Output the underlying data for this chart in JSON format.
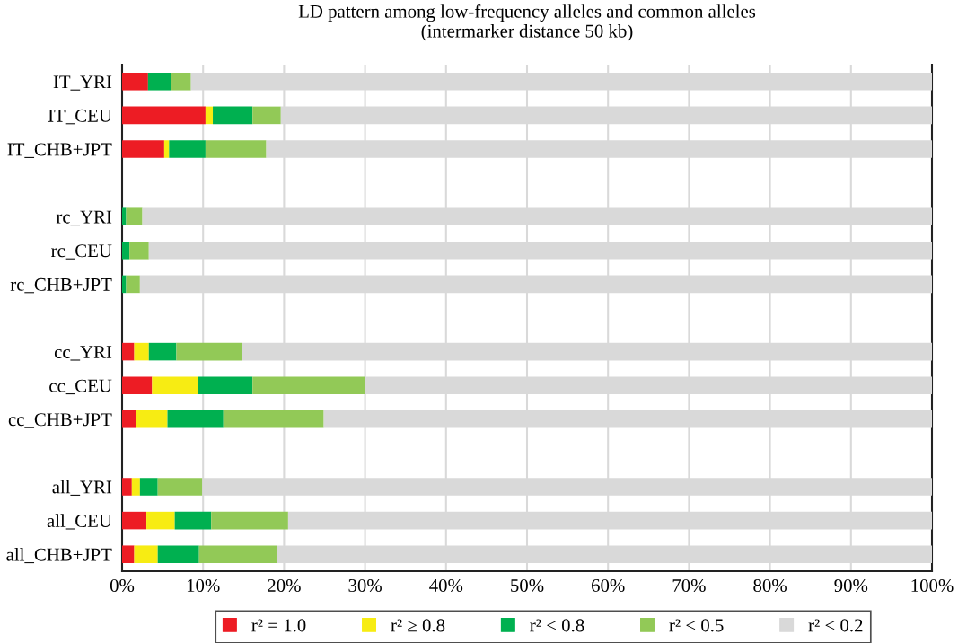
{
  "chart_data": {
    "type": "bar",
    "orientation": "horizontal",
    "stacked": true,
    "title": "LD pattern among low-frequency alleles and common alleles\n(intermarker distance 50 kb)",
    "categories": [
      "IT_YRI",
      "IT_CEU",
      "IT_CHB+JPT",
      null,
      "rc_YRI",
      "rc_CEU",
      "rc_CHB+JPT",
      null,
      "cc_YRI",
      "cc_CEU",
      "cc_CHB+JPT",
      null,
      "all_YRI",
      "all_CEU",
      "all_CHB+JPT"
    ],
    "series": [
      {
        "name": "r² = 1.0",
        "color": "#ed1c24",
        "values": [
          3.2,
          10.3,
          5.2,
          null,
          0,
          0,
          0,
          null,
          1.5,
          3.7,
          1.7,
          null,
          1.2,
          3.0,
          1.5
        ]
      },
      {
        "name": "r² ≥ 0.8",
        "color": "#f7ec13",
        "values": [
          0,
          0.9,
          0.6,
          null,
          0,
          0,
          0,
          null,
          1.8,
          5.7,
          3.9,
          null,
          1.0,
          3.5,
          2.9
        ]
      },
      {
        "name": "r² < 0.8",
        "color": "#00b050",
        "values": [
          2.9,
          4.9,
          4.5,
          null,
          0.5,
          0.9,
          0.5,
          null,
          3.4,
          6.7,
          6.9,
          null,
          2.2,
          4.5,
          5.1
        ]
      },
      {
        "name": "r² < 0.5",
        "color": "#92c957",
        "values": [
          2.4,
          3.5,
          7.5,
          null,
          2.0,
          2.4,
          1.7,
          null,
          8.1,
          13.9,
          12.4,
          null,
          5.5,
          9.5,
          9.6
        ]
      },
      {
        "name": "r² < 0.2",
        "color": "#d9d9d9",
        "values": [
          91.5,
          80.4,
          82.2,
          null,
          97.5,
          96.7,
          97.8,
          null,
          85.2,
          70.0,
          75.1,
          null,
          90.1,
          79.5,
          80.9
        ]
      }
    ],
    "xlim": [
      0,
      100
    ],
    "xticks": [
      {
        "value": 0,
        "label": "0%"
      },
      {
        "value": 10,
        "label": "10%"
      },
      {
        "value": 20,
        "label": "20%"
      },
      {
        "value": 30,
        "label": "30%"
      },
      {
        "value": 40,
        "label": "40%"
      },
      {
        "value": 50,
        "label": "50%"
      },
      {
        "value": 60,
        "label": "60%"
      },
      {
        "value": 70,
        "label": "70%"
      },
      {
        "value": 80,
        "label": "80%"
      },
      {
        "value": 90,
        "label": "90%"
      },
      {
        "value": 100,
        "label": "100%"
      }
    ],
    "grid": "x",
    "legend": "bottom"
  }
}
